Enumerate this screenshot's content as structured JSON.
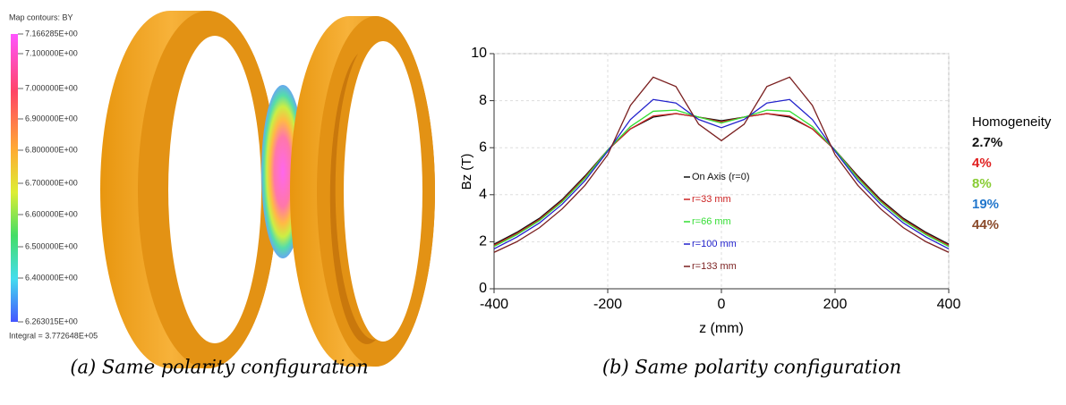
{
  "chart_data": {
    "type": "line",
    "y_label": "Bz (T)",
    "x_label": "z (mm)",
    "x": [
      -400,
      -360,
      -320,
      -280,
      -240,
      -200,
      -160,
      -120,
      -80,
      -40,
      0,
      40,
      80,
      120,
      160,
      200,
      240,
      280,
      320,
      360,
      400
    ],
    "series": [
      {
        "name": "On Axis (r=0)",
        "color": "#111111",
        "values": [
          1.9,
          2.4,
          3.0,
          3.8,
          4.8,
          5.9,
          6.8,
          7.3,
          7.45,
          7.3,
          7.15,
          7.3,
          7.45,
          7.3,
          6.8,
          5.9,
          4.8,
          3.8,
          3.0,
          2.4,
          1.9
        ]
      },
      {
        "name": "r=33 mm",
        "color": "#cc2222",
        "values": [
          1.85,
          2.35,
          2.95,
          3.75,
          4.75,
          5.9,
          6.8,
          7.35,
          7.45,
          7.3,
          7.1,
          7.3,
          7.45,
          7.35,
          6.8,
          5.9,
          4.75,
          3.75,
          2.95,
          2.35,
          1.85
        ]
      },
      {
        "name": "r=66 mm",
        "color": "#33dd33",
        "values": [
          1.8,
          2.3,
          2.9,
          3.7,
          4.7,
          5.9,
          6.9,
          7.55,
          7.6,
          7.3,
          7.05,
          7.3,
          7.6,
          7.55,
          6.9,
          5.9,
          4.7,
          3.7,
          2.9,
          2.3,
          1.8
        ]
      },
      {
        "name": "r=100 mm",
        "color": "#2222cc",
        "values": [
          1.7,
          2.2,
          2.8,
          3.6,
          4.6,
          5.85,
          7.2,
          8.05,
          7.9,
          7.2,
          6.85,
          7.2,
          7.9,
          8.05,
          7.2,
          5.85,
          4.6,
          3.6,
          2.8,
          2.2,
          1.7
        ]
      },
      {
        "name": "r=133 mm",
        "color": "#7a1f1f",
        "values": [
          1.55,
          2.0,
          2.6,
          3.4,
          4.4,
          5.7,
          7.8,
          9.0,
          8.6,
          7.0,
          6.3,
          7.0,
          8.6,
          9.0,
          7.8,
          5.7,
          4.4,
          3.4,
          2.6,
          2.0,
          1.55
        ]
      }
    ],
    "xlim": [
      -400,
      400
    ],
    "xticks": [
      -400,
      -200,
      0,
      200,
      400
    ],
    "ylim": [
      0,
      10
    ],
    "yticks": [
      0,
      2,
      4,
      6,
      8,
      10
    ],
    "grid": true,
    "annotations": {
      "title": "Homogeneity",
      "items": [
        {
          "text": "2.7%",
          "color": "#111111"
        },
        {
          "text": "4%",
          "color": "#e02020"
        },
        {
          "text": "8%",
          "color": "#88cc33"
        },
        {
          "text": "19%",
          "color": "#2277cc"
        },
        {
          "text": "44%",
          "color": "#8a4a2a"
        }
      ]
    },
    "caption": "(b) Same polarity configuration"
  },
  "figure_a": {
    "colorbar": {
      "title": "Map contours: BY",
      "labels": [
        "7.166285E+00",
        "7.100000E+00",
        "7.000000E+00",
        "6.900000E+00",
        "6.800000E+00",
        "6.700000E+00",
        "6.600000E+00",
        "6.500000E+00",
        "6.400000E+00",
        "6.263015E+00"
      ],
      "integral": "Integral = 3.772648E+05"
    },
    "caption": "(a) Same polarity configuration"
  }
}
